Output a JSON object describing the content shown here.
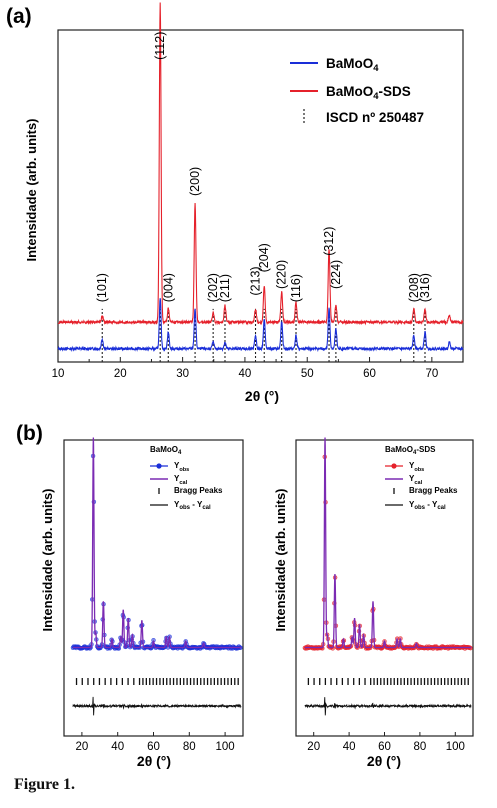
{
  "caption": "Figure 1.",
  "colors": {
    "blue": "#1a2ed8",
    "red": "#e5212b",
    "purple": "#7b2bb3",
    "black": "#111111"
  },
  "chart_data": [
    {
      "type": "line",
      "panel_label": "(a)",
      "xlabel": "2θ (°)",
      "ylabel": "Intensidade (arb. units)",
      "xlim": [
        10,
        75
      ],
      "x_ticks": [
        "10",
        "20",
        "30",
        "40",
        "50",
        "60",
        "70"
      ],
      "series": [
        {
          "name": "BaMoO4",
          "color": "#1a2ed8",
          "baseline": 0.04,
          "peaks": [
            [
              17.1,
              0.03
            ],
            [
              26.4,
              0.15
            ],
            [
              27.7,
              0.05
            ],
            [
              32.0,
              0.12
            ],
            [
              34.9,
              0.02
            ],
            [
              36.8,
              0.02
            ],
            [
              41.7,
              0.04
            ],
            [
              43.1,
              0.09
            ],
            [
              45.9,
              0.08
            ],
            [
              48.2,
              0.04
            ],
            [
              53.5,
              0.12
            ],
            [
              54.6,
              0.06
            ],
            [
              67.1,
              0.04
            ],
            [
              68.9,
              0.05
            ],
            [
              72.8,
              0.02
            ]
          ]
        },
        {
          "name": "BaMoO4-SDS",
          "color": "#e5212b",
          "baseline": 0.12,
          "peaks": [
            [
              17.1,
              0.02
            ],
            [
              26.4,
              0.96
            ],
            [
              27.7,
              0.04
            ],
            [
              32.0,
              0.36
            ],
            [
              34.9,
              0.03
            ],
            [
              36.8,
              0.05
            ],
            [
              41.7,
              0.04
            ],
            [
              43.1,
              0.11
            ],
            [
              45.9,
              0.09
            ],
            [
              48.2,
              0.06
            ],
            [
              53.5,
              0.22
            ],
            [
              54.6,
              0.05
            ],
            [
              67.1,
              0.04
            ],
            [
              68.9,
              0.04
            ],
            [
              72.8,
              0.02
            ]
          ]
        }
      ],
      "reference": {
        "name": "ISCD nº 250487",
        "positions": [
          17.1,
          26.4,
          27.7,
          32.0,
          34.9,
          36.8,
          41.7,
          43.1,
          45.9,
          48.2,
          53.5,
          54.6,
          67.1,
          68.9
        ]
      },
      "hkl_labels": [
        {
          "text": "(101)",
          "x": 17.1,
          "h": 0.18
        },
        {
          "text": "(112)",
          "x": 26.4,
          "h": 0.91
        },
        {
          "text": "(004)",
          "x": 27.7,
          "h": 0.18
        },
        {
          "text": "(200)",
          "x": 32.0,
          "h": 0.5
        },
        {
          "text": "(202)",
          "x": 34.9,
          "h": 0.18
        },
        {
          "text": "(211)",
          "x": 36.8,
          "h": 0.18
        },
        {
          "text": "(213)",
          "x": 41.7,
          "h": 0.2
        },
        {
          "text": "(204)",
          "x": 43.1,
          "h": 0.27
        },
        {
          "text": "(220)",
          "x": 45.9,
          "h": 0.22
        },
        {
          "text": "(116)",
          "x": 48.2,
          "h": 0.18
        },
        {
          "text": "(312)",
          "x": 53.5,
          "h": 0.32
        },
        {
          "text": "(224)",
          "x": 54.6,
          "h": 0.22
        },
        {
          "text": "(208)",
          "x": 67.1,
          "h": 0.18
        },
        {
          "text": "(316)",
          "x": 68.9,
          "h": 0.18
        }
      ],
      "legend": [
        "BaMoO4",
        "BaMoO4-SDS",
        "ISCD nº 250487"
      ],
      "legend_position": "top-right"
    },
    {
      "type": "line",
      "panel_label": "(b)",
      "title": "BaMoO4",
      "xlabel": "2θ (°)",
      "ylabel": "Intensidade (arb. units)",
      "xlim": [
        10,
        110
      ],
      "x_ticks": [
        "20",
        "40",
        "60",
        "80",
        "100"
      ],
      "obs_color": "#1a2ed8",
      "baseline": 0.05,
      "peaks": [
        [
          26.4,
          1.0
        ],
        [
          27.7,
          0.07
        ],
        [
          32.0,
          0.22
        ],
        [
          43.1,
          0.18
        ],
        [
          45.9,
          0.14
        ],
        [
          53.5,
          0.13
        ],
        [
          48.2,
          0.06
        ],
        [
          67.1,
          0.05
        ],
        [
          68.9,
          0.05
        ],
        [
          36.8,
          0.04
        ],
        [
          41.7,
          0.05
        ],
        [
          60,
          0.03
        ],
        [
          78,
          0.03
        ],
        [
          88,
          0.02
        ]
      ],
      "legend": [
        "Yobs",
        "Ycal",
        "Bragg Peaks",
        "Yobs - Ycal"
      ]
    },
    {
      "type": "line",
      "title": "BaMoO4-SDS",
      "xlabel": "2θ (°)",
      "ylabel": "Intensidade (arb. units)",
      "xlim": [
        10,
        110
      ],
      "x_ticks": [
        "20",
        "40",
        "60",
        "80",
        "100"
      ],
      "obs_color": "#e5212b",
      "baseline": 0.05,
      "peaks": [
        [
          26.4,
          1.0
        ],
        [
          27.7,
          0.06
        ],
        [
          32.0,
          0.35
        ],
        [
          43.1,
          0.14
        ],
        [
          45.9,
          0.11
        ],
        [
          53.5,
          0.22
        ],
        [
          48.2,
          0.06
        ],
        [
          67.1,
          0.04
        ],
        [
          68.9,
          0.04
        ],
        [
          36.8,
          0.04
        ],
        [
          41.7,
          0.05
        ],
        [
          60,
          0.03
        ],
        [
          78,
          0.02
        ]
      ],
      "legend": [
        "Yobs",
        "Ycal",
        "Bragg Peaks",
        "Yobs - Ycal"
      ]
    }
  ]
}
